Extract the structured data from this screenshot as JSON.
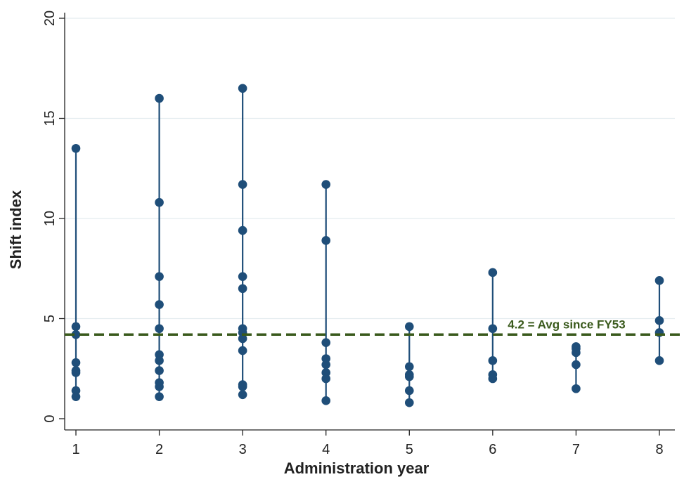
{
  "chart_data": {
    "type": "scatter",
    "xlabel": "Administration year",
    "ylabel": "Shift index",
    "xlim": [
      1,
      8
    ],
    "ylim": [
      0,
      20
    ],
    "x_ticks": [
      "1",
      "2",
      "3",
      "4",
      "5",
      "6",
      "7",
      "8"
    ],
    "y_ticks": [
      "0",
      "5",
      "10",
      "15",
      "20"
    ],
    "grid": "horizontal",
    "series": [
      {
        "marker_color": "#1f4e79",
        "points": [
          {
            "x": 1,
            "y": [
              13.5,
              4.6,
              4.2,
              2.8,
              2.4,
              2.3,
              1.4,
              1.1
            ]
          },
          {
            "x": 2,
            "y": [
              16.0,
              10.8,
              7.1,
              5.7,
              4.5,
              3.2,
              2.9,
              2.4,
              1.8,
              1.6,
              1.1
            ]
          },
          {
            "x": 3,
            "y": [
              16.5,
              11.7,
              9.4,
              7.1,
              6.5,
              4.5,
              4.3,
              4.0,
              3.4,
              1.7,
              1.6,
              1.2
            ]
          },
          {
            "x": 4,
            "y": [
              11.7,
              8.9,
              3.8,
              3.0,
              2.7,
              2.3,
              2.0,
              0.9
            ]
          },
          {
            "x": 5,
            "y": [
              4.6,
              2.6,
              2.2,
              2.1,
              1.4,
              0.8
            ]
          },
          {
            "x": 6,
            "y": [
              7.3,
              4.5,
              2.9,
              2.2,
              2.0
            ]
          },
          {
            "x": 7,
            "y": [
              3.6,
              3.5,
              3.3,
              2.7,
              1.5
            ]
          },
          {
            "x": 8,
            "y": [
              6.9,
              4.9,
              4.3,
              2.9
            ]
          }
        ]
      }
    ],
    "reference_line": {
      "value": 4.2,
      "label": "4.2 = Avg since FY53",
      "color": "#3a5a1c",
      "style": "dashed"
    }
  }
}
